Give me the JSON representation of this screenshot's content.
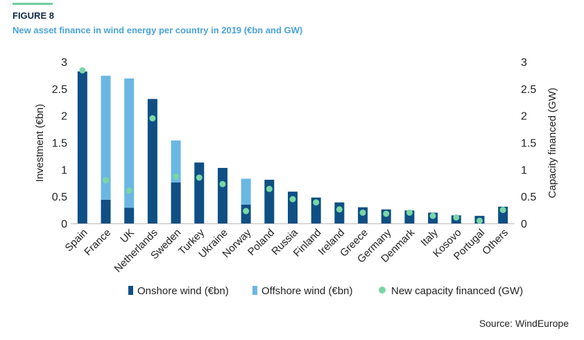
{
  "figure": {
    "label": "FIGURE 8",
    "title": "New asset finance in wind energy per country in 2019 (€bn and GW)",
    "source": "Source: WindEurope"
  },
  "colors": {
    "onshore": "#0f4f84",
    "offshore": "#6ab7e3",
    "capacity": "#79d6a6",
    "accent": "#6fcf9e"
  },
  "chart_data": {
    "type": "bar",
    "stacked": true,
    "categories": [
      "Spain",
      "France",
      "UK",
      "Netherlands",
      "Sweden",
      "Turkey",
      "Ukraine",
      "Norway",
      "Poland",
      "Russia",
      "Finland",
      "Ireland",
      "Greece",
      "Germany",
      "Denmark",
      "Italy",
      "Kosovo",
      "Portugal",
      "Others"
    ],
    "series": [
      {
        "name": "Onshore wind (€bn)",
        "kind": "bar",
        "values": [
          2.82,
          0.44,
          0.29,
          2.31,
          0.76,
          1.13,
          1.03,
          0.35,
          0.81,
          0.59,
          0.48,
          0.39,
          0.3,
          0.26,
          0.24,
          0.2,
          0.15,
          0.14,
          0.31
        ]
      },
      {
        "name": "Offshore wind (€bn)",
        "kind": "bar",
        "values": [
          0,
          2.3,
          2.4,
          0,
          0.78,
          0,
          0,
          0.48,
          0,
          0,
          0,
          0,
          0,
          0,
          0,
          0,
          0,
          0,
          0
        ]
      },
      {
        "name": "New capacity financed (GW)",
        "kind": "scatter",
        "axis": "right",
        "values": [
          2.84,
          0.8,
          0.61,
          1.95,
          0.87,
          0.85,
          0.73,
          0.23,
          0.64,
          0.45,
          0.39,
          0.26,
          0.2,
          0.18,
          0.2,
          0.14,
          0.11,
          0.05,
          0.25
        ]
      }
    ],
    "ylabel": "Investment (€bn)",
    "y2label": "Capacity financed (GW)",
    "ylim": [
      0,
      3
    ],
    "y2lim": [
      0,
      3
    ],
    "yticks": [
      0,
      0.5,
      1,
      1.5,
      2,
      2.5,
      3
    ],
    "ytick_labels": [
      "0",
      "0.5",
      "1",
      "1.5",
      "2",
      "2.5",
      "3"
    ],
    "legend_position": "bottom",
    "grid": false
  }
}
